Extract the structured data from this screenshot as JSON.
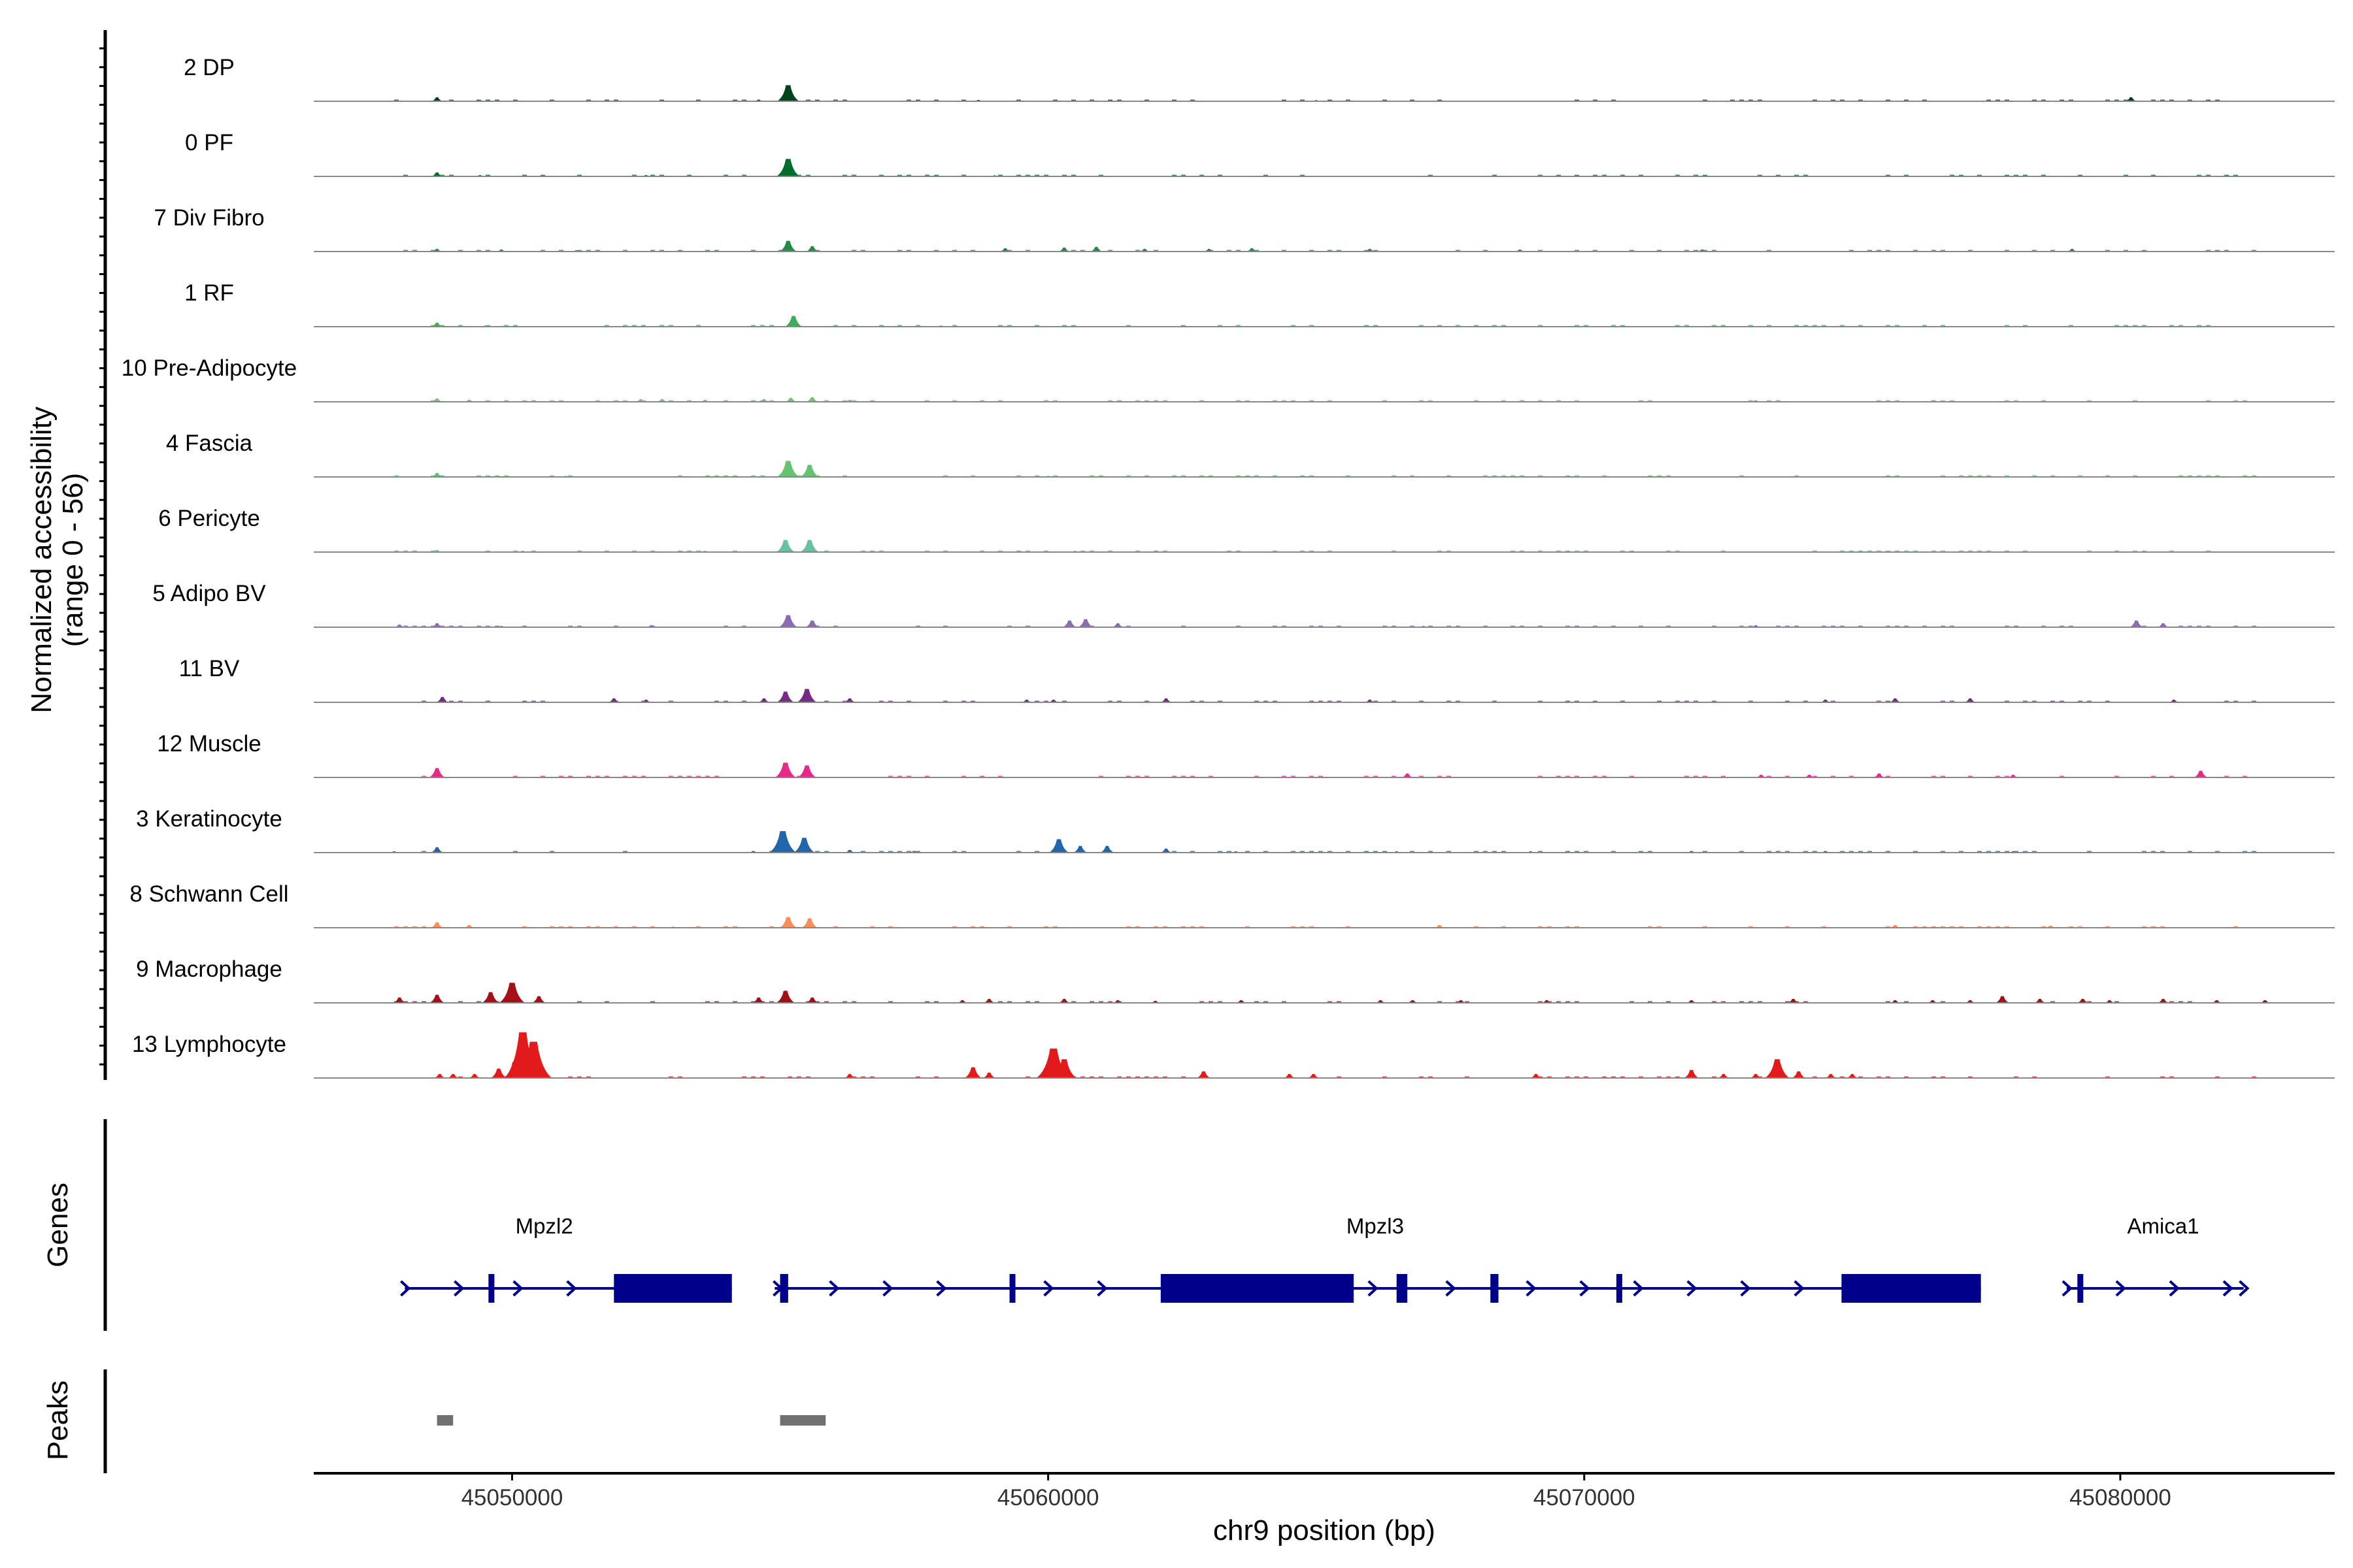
{
  "chart_data": {
    "type": "area",
    "title": "",
    "ylabel_line1": "Normalized accessibility",
    "ylabel_line2": "(range 0 - 56)",
    "y_range": [
      0,
      56
    ],
    "xlabel": "chr9 position (bp)",
    "x_range": [
      45046300,
      45084000
    ],
    "x_ticks": [
      45050000,
      45060000,
      45070000,
      45080000
    ],
    "x_tick_labels": [
      "45050000",
      "45060000",
      "45070000",
      "45080000"
    ],
    "tracks": [
      {
        "name": "2 DP",
        "color": "#00441b",
        "peaks": [
          [
            45048600,
            3
          ],
          [
            45055150,
            12
          ],
          [
            45080200,
            3
          ],
          [
            45054600,
            1.2
          ],
          [
            45058700,
            1
          ],
          [
            45065000,
            0.8
          ]
        ]
      },
      {
        "name": "0 PF",
        "color": "#006d2c",
        "peaks": [
          [
            45048600,
            3
          ],
          [
            45055150,
            13
          ],
          [
            45049400,
            1
          ],
          [
            45052500,
            1
          ],
          [
            45059000,
            0.8
          ]
        ]
      },
      {
        "name": "7 Div Fibro",
        "color": "#238b45",
        "peaks": [
          [
            45048600,
            2
          ],
          [
            45055150,
            8
          ],
          [
            45055600,
            4
          ],
          [
            45059200,
            2.5
          ],
          [
            45060300,
            3
          ],
          [
            45060900,
            3.5
          ],
          [
            45061800,
            2
          ],
          [
            45063000,
            2
          ],
          [
            45063800,
            2.5
          ],
          [
            45066000,
            2
          ],
          [
            45068800,
            1.5
          ],
          [
            45072200,
            1.5
          ],
          [
            45079100,
            2
          ],
          [
            45049800,
            1.5
          ],
          [
            45051200,
            1
          ]
        ]
      },
      {
        "name": "1 RF",
        "color": "#41ab5d",
        "peaks": [
          [
            45048600,
            3
          ],
          [
            45055250,
            8
          ],
          [
            45049500,
            0.8
          ],
          [
            45058000,
            0.8
          ],
          [
            45062500,
            0.8
          ]
        ]
      },
      {
        "name": "10 Pre-Adipocyte",
        "color": "#74c476",
        "peaks": [
          [
            45048600,
            2.5
          ],
          [
            45049200,
            1.5
          ],
          [
            45052400,
            2
          ],
          [
            45052800,
            2
          ],
          [
            45053600,
            1.5
          ],
          [
            45054700,
            2
          ],
          [
            45055200,
            3
          ],
          [
            45055600,
            3.5
          ],
          [
            45056300,
            1.5
          ],
          [
            45073200,
            1.2
          ],
          [
            45076500,
            1.2
          ]
        ]
      },
      {
        "name": "4 Fascia",
        "color": "#64c270",
        "peaks": [
          [
            45048600,
            3
          ],
          [
            45055150,
            12
          ],
          [
            45055550,
            9
          ],
          [
            45051000,
            0.8
          ],
          [
            45060000,
            0.8
          ]
        ]
      },
      {
        "name": "6 Pericyte",
        "color": "#66c2a5",
        "peaks": [
          [
            45048600,
            1.5
          ],
          [
            45055100,
            9
          ],
          [
            45055550,
            9
          ],
          [
            45050200,
            1
          ],
          [
            45053600,
            1
          ],
          [
            45060500,
            1
          ],
          [
            45062000,
            0.8
          ]
        ]
      },
      {
        "name": "5 Adipo BV",
        "color": "#8c6bb1",
        "peaks": [
          [
            45047900,
            2
          ],
          [
            45048600,
            3
          ],
          [
            45055150,
            9
          ],
          [
            45055600,
            5
          ],
          [
            45060400,
            5
          ],
          [
            45060700,
            6
          ],
          [
            45061300,
            3
          ],
          [
            45052600,
            1.5
          ],
          [
            45073200,
            1.5
          ],
          [
            45080300,
            5
          ],
          [
            45080800,
            3
          ],
          [
            45049800,
            1
          ],
          [
            45067000,
            1
          ]
        ]
      },
      {
        "name": "11 BV",
        "color": "#762a83",
        "peaks": [
          [
            45048700,
            4
          ],
          [
            45051900,
            3
          ],
          [
            45052500,
            2
          ],
          [
            45054700,
            3
          ],
          [
            45055100,
            8
          ],
          [
            45055500,
            10
          ],
          [
            45056300,
            3
          ],
          [
            45059600,
            2
          ],
          [
            45060100,
            2
          ],
          [
            45062200,
            3
          ],
          [
            45066000,
            2
          ],
          [
            45074500,
            2
          ],
          [
            45075800,
            3
          ],
          [
            45077200,
            3
          ],
          [
            45081000,
            2
          ]
        ]
      },
      {
        "name": "12 Muscle",
        "color": "#e7298a",
        "peaks": [
          [
            45048600,
            7
          ],
          [
            45055100,
            11
          ],
          [
            45055500,
            9
          ],
          [
            45066700,
            3
          ],
          [
            45073300,
            2
          ],
          [
            45074200,
            2
          ],
          [
            45075500,
            3
          ],
          [
            45078000,
            2
          ],
          [
            45081500,
            5
          ]
        ]
      },
      {
        "name": "3 Keratinocyte",
        "color": "#2166ac",
        "peaks": [
          [
            45048600,
            4
          ],
          [
            45055050,
            16
          ],
          [
            45055450,
            11
          ],
          [
            45056300,
            2
          ],
          [
            45060200,
            10
          ],
          [
            45060600,
            5
          ],
          [
            45061100,
            5
          ],
          [
            45062200,
            3
          ],
          [
            45047800,
            1
          ],
          [
            45054500,
            1.2
          ],
          [
            45057500,
            1.2
          ],
          [
            45063500,
            1
          ],
          [
            45066500,
            1
          ],
          [
            45069000,
            1
          ],
          [
            45072000,
            1.2
          ],
          [
            45074500,
            1.2
          ],
          [
            45078000,
            1
          ]
        ]
      },
      {
        "name": "8 Schwann Cell",
        "color": "#fc8d59",
        "peaks": [
          [
            45048600,
            4
          ],
          [
            45049200,
            2
          ],
          [
            45055150,
            8
          ],
          [
            45055550,
            7
          ],
          [
            45067300,
            2
          ],
          [
            45075800,
            2
          ],
          [
            45078700,
            1.5
          ],
          [
            45053000,
            0.8
          ]
        ]
      },
      {
        "name": "9 Macrophage",
        "color": "#a50f15",
        "peaks": [
          [
            45047900,
            4
          ],
          [
            45048600,
            6
          ],
          [
            45049600,
            8
          ],
          [
            45050000,
            15
          ],
          [
            45050500,
            5
          ],
          [
            45054600,
            4
          ],
          [
            45055100,
            9
          ],
          [
            45055600,
            4
          ],
          [
            45058400,
            2
          ],
          [
            45058900,
            3
          ],
          [
            45060300,
            3
          ],
          [
            45061300,
            2
          ],
          [
            45062000,
            1.5
          ],
          [
            45063600,
            2
          ],
          [
            45066200,
            2
          ],
          [
            45066800,
            2
          ],
          [
            45067700,
            2
          ],
          [
            45069300,
            2
          ],
          [
            45072000,
            2
          ],
          [
            45073900,
            3
          ],
          [
            45075800,
            2
          ],
          [
            45076500,
            2
          ],
          [
            45077200,
            2
          ],
          [
            45077800,
            5
          ],
          [
            45078500,
            3
          ],
          [
            45079300,
            3
          ],
          [
            45079800,
            2
          ],
          [
            45080800,
            3
          ],
          [
            45081800,
            2
          ],
          [
            45082700,
            2
          ]
        ]
      },
      {
        "name": "13 Lymphocyte",
        "color": "#e31a1c",
        "peaks": [
          [
            45048650,
            3
          ],
          [
            45048900,
            3
          ],
          [
            45049300,
            3
          ],
          [
            45049750,
            7
          ],
          [
            45050050,
            12
          ],
          [
            45050200,
            34
          ],
          [
            45050400,
            27
          ],
          [
            45056300,
            3
          ],
          [
            45058600,
            8
          ],
          [
            45058900,
            4
          ],
          [
            45060100,
            22
          ],
          [
            45060300,
            14
          ],
          [
            45062900,
            5
          ],
          [
            45064500,
            3
          ],
          [
            45064950,
            3
          ],
          [
            45069100,
            3
          ],
          [
            45072000,
            6
          ],
          [
            45072600,
            3
          ],
          [
            45073200,
            3
          ],
          [
            45073600,
            14
          ],
          [
            45074000,
            5
          ],
          [
            45074600,
            3
          ],
          [
            45075000,
            3
          ]
        ]
      }
    ],
    "genes": [
      {
        "name": "Mpzl2",
        "start": 45048000,
        "end": 45054100,
        "label_x": 45050600,
        "strand": "+",
        "exons": [
          [
            45049560,
            45049640
          ],
          [
            45051900,
            45054100
          ]
        ],
        "arrows": [
          45048000,
          45049000,
          45050100,
          45051100
        ]
      },
      {
        "name": "Mpzl3",
        "start": 45054900,
        "end": 45077400,
        "label_x": 45066100,
        "strand": "+",
        "exons": [
          [
            45055000,
            45055150
          ],
          [
            45059280,
            45059320
          ],
          [
            45062100,
            45065700
          ],
          [
            45066500,
            45066700
          ],
          [
            45068250,
            45068400
          ],
          [
            45070600,
            45070700
          ],
          [
            45074800,
            45077400
          ]
        ],
        "arrows": [
          45054950,
          45056000,
          45057000,
          45058000,
          45060000,
          45061000,
          45066050,
          45067500,
          45069000,
          45070000,
          45071000,
          45072000,
          45073000,
          45074000
        ]
      },
      {
        "name": "Amica1",
        "start": 45079000,
        "end": 45082300,
        "label_x": 45080800,
        "strand": "+",
        "exons": [
          [
            45079200,
            45079300
          ]
        ],
        "arrows": [
          45079000,
          45080000,
          45081000,
          45082000,
          45082300
        ]
      }
    ],
    "genes_label": "Genes",
    "peak_regions": [
      [
        45048600,
        45048900
      ],
      [
        45055000,
        45055850
      ]
    ],
    "peaks_label": "Peaks"
  }
}
